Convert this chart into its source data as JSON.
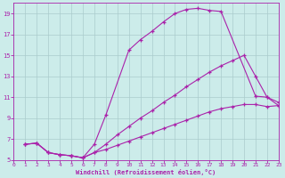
{
  "xlabel": "Windchill (Refroidissement éolien,°C)",
  "bg_color": "#ccecea",
  "grid_color": "#aacccc",
  "line_color": "#aa22aa",
  "xlim": [
    0,
    23
  ],
  "ylim": [
    5,
    20
  ],
  "xticks": [
    0,
    1,
    2,
    3,
    4,
    5,
    6,
    7,
    8,
    9,
    10,
    11,
    12,
    13,
    14,
    15,
    16,
    17,
    18,
    19,
    20,
    21,
    22,
    23
  ],
  "yticks": [
    5,
    7,
    9,
    11,
    13,
    15,
    17,
    19
  ],
  "line1_x": [
    1,
    2,
    3,
    4,
    5,
    6,
    7,
    8,
    9,
    10,
    11,
    12,
    13,
    14,
    15,
    16,
    17,
    18,
    19,
    20,
    21,
    22,
    23
  ],
  "line1_y": [
    6.5,
    6.6,
    5.7,
    5.5,
    5.4,
    5.2,
    5.7,
    6.5,
    7.4,
    8.2,
    9.0,
    9.7,
    10.5,
    11.2,
    12.0,
    12.7,
    13.4,
    14.0,
    14.5,
    15.0,
    13.0,
    11.0,
    10.2
  ],
  "line2_x": [
    1,
    2,
    3,
    4,
    5,
    6,
    7,
    8,
    10,
    11,
    12,
    13,
    14,
    15,
    16,
    17,
    18,
    21,
    22,
    23
  ],
  "line2_y": [
    6.5,
    6.6,
    5.7,
    5.5,
    5.4,
    5.2,
    6.5,
    9.3,
    15.5,
    16.5,
    17.3,
    18.2,
    19.0,
    19.4,
    19.5,
    19.3,
    19.2,
    11.1,
    11.0,
    10.5
  ],
  "line3_x": [
    1,
    2,
    3,
    4,
    5,
    6,
    7,
    8,
    9,
    10,
    11,
    12,
    13,
    14,
    15,
    16,
    17,
    18,
    19,
    20,
    21,
    22,
    23
  ],
  "line3_y": [
    6.5,
    6.6,
    5.7,
    5.5,
    5.4,
    5.2,
    5.7,
    6.0,
    6.4,
    6.8,
    7.2,
    7.6,
    8.0,
    8.4,
    8.8,
    9.2,
    9.6,
    9.9,
    10.1,
    10.3,
    10.3,
    10.1,
    10.2
  ]
}
